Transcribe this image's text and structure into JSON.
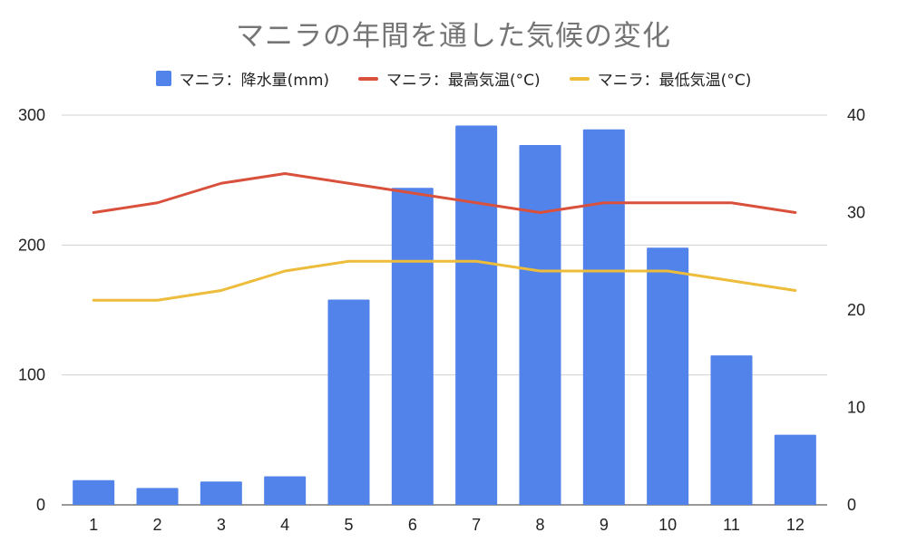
{
  "chart_data": {
    "type": "bar",
    "title": "マニラの年間を通した気候の変化",
    "categories": [
      "1",
      "2",
      "3",
      "4",
      "5",
      "6",
      "7",
      "8",
      "9",
      "10",
      "11",
      "12"
    ],
    "series": [
      {
        "name": "マニラ：降水量(mm)",
        "type": "bar",
        "axis": "left",
        "color": "#5283EA",
        "values": [
          19,
          13,
          18,
          22,
          158,
          244,
          292,
          277,
          289,
          198,
          115,
          54
        ]
      },
      {
        "name": "マニラ：最高気温(°C)",
        "type": "line",
        "axis": "right",
        "color": "#D9513C",
        "values": [
          30,
          31,
          33,
          34,
          33,
          32,
          31,
          30,
          31,
          31,
          31,
          30
        ]
      },
      {
        "name": "マニラ：最低気温(°C)",
        "type": "line",
        "axis": "right",
        "color": "#EDBC3A",
        "values": [
          21,
          21,
          22,
          24,
          25,
          25,
          25,
          24,
          24,
          24,
          23,
          22
        ]
      }
    ],
    "y_left": {
      "min": 0,
      "max": 300,
      "ticks": [
        0,
        100,
        200,
        300
      ]
    },
    "y_right": {
      "min": 0,
      "max": 40,
      "ticks": [
        0,
        10,
        20,
        30,
        40
      ]
    },
    "grid": true,
    "legend_position": "top"
  }
}
